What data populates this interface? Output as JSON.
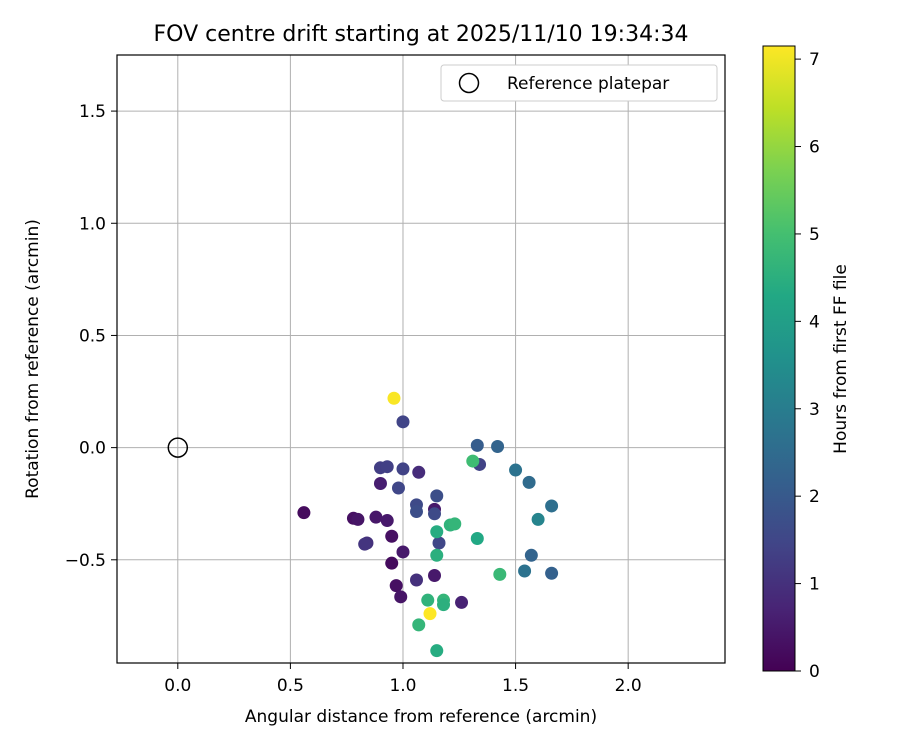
{
  "chart_data": {
    "type": "scatter",
    "title": "FOV centre drift starting at 2025/11/10 19:34:34",
    "xlabel": "Angular distance from reference (arcmin)",
    "ylabel": "Rotation from reference (arcmin)",
    "xlim": [
      -0.27,
      2.43
    ],
    "ylim": [
      -0.96,
      1.75
    ],
    "xticks": [
      0.0,
      0.5,
      1.0,
      1.5,
      2.0
    ],
    "xtick_labels": [
      "0.0",
      "0.5",
      "1.0",
      "1.5",
      "2.0"
    ],
    "yticks": [
      -0.5,
      0.0,
      0.5,
      1.0,
      1.5
    ],
    "ytick_labels": [
      "−0.5",
      "0.0",
      "0.5",
      "1.0",
      "1.5"
    ],
    "grid": true,
    "legend": {
      "placement": "upper-right",
      "label": "Reference platepar"
    },
    "reference_point": {
      "x": 0.0,
      "y": 0.0
    },
    "colorbar": {
      "label": "Hours from first FF file",
      "colormap": "viridis",
      "range": [
        0,
        7.15
      ],
      "ticks": [
        0,
        1,
        2,
        3,
        4,
        5,
        6,
        7
      ],
      "tick_labels": [
        "0",
        "1",
        "2",
        "3",
        "4",
        "5",
        "6",
        "7"
      ]
    },
    "points": [
      {
        "x": 0.56,
        "y": -0.29,
        "t": 0.2
      },
      {
        "x": 0.78,
        "y": -0.315,
        "t": 0.3
      },
      {
        "x": 0.8,
        "y": -0.32,
        "t": 0.4
      },
      {
        "x": 0.88,
        "y": -0.31,
        "t": 0.45
      },
      {
        "x": 0.93,
        "y": -0.325,
        "t": 0.5
      },
      {
        "x": 0.9,
        "y": -0.16,
        "t": 0.6
      },
      {
        "x": 0.95,
        "y": -0.395,
        "t": 0.3
      },
      {
        "x": 0.95,
        "y": -0.515,
        "t": 0.2
      },
      {
        "x": 1.0,
        "y": -0.465,
        "t": 0.5
      },
      {
        "x": 0.97,
        "y": -0.615,
        "t": 0.3
      },
      {
        "x": 0.99,
        "y": -0.665,
        "t": 0.4
      },
      {
        "x": 1.14,
        "y": -0.57,
        "t": 0.5
      },
      {
        "x": 1.14,
        "y": -0.275,
        "t": 0.5
      },
      {
        "x": 1.07,
        "y": -0.11,
        "t": 0.9
      },
      {
        "x": 1.06,
        "y": -0.59,
        "t": 1.0
      },
      {
        "x": 1.26,
        "y": -0.69,
        "t": 0.7
      },
      {
        "x": 0.84,
        "y": -0.425,
        "t": 1.0
      },
      {
        "x": 0.83,
        "y": -0.43,
        "t": 1.1
      },
      {
        "x": 0.9,
        "y": -0.09,
        "t": 1.3
      },
      {
        "x": 0.93,
        "y": -0.085,
        "t": 1.35
      },
      {
        "x": 1.0,
        "y": -0.095,
        "t": 1.4
      },
      {
        "x": 0.98,
        "y": -0.18,
        "t": 1.5
      },
      {
        "x": 1.0,
        "y": 0.115,
        "t": 1.45
      },
      {
        "x": 1.06,
        "y": -0.255,
        "t": 1.6
      },
      {
        "x": 1.06,
        "y": -0.285,
        "t": 1.7
      },
      {
        "x": 1.14,
        "y": -0.295,
        "t": 1.6
      },
      {
        "x": 1.15,
        "y": -0.215,
        "t": 1.7
      },
      {
        "x": 1.16,
        "y": -0.425,
        "t": 1.5
      },
      {
        "x": 1.34,
        "y": -0.075,
        "t": 1.4
      },
      {
        "x": 1.33,
        "y": 0.01,
        "t": 2.1
      },
      {
        "x": 1.42,
        "y": 0.005,
        "t": 2.3
      },
      {
        "x": 1.5,
        "y": -0.1,
        "t": 2.7
      },
      {
        "x": 1.56,
        "y": -0.155,
        "t": 2.5
      },
      {
        "x": 1.6,
        "y": -0.32,
        "t": 3.2
      },
      {
        "x": 1.66,
        "y": -0.26,
        "t": 2.6
      },
      {
        "x": 1.57,
        "y": -0.48,
        "t": 2.3
      },
      {
        "x": 1.54,
        "y": -0.55,
        "t": 2.7
      },
      {
        "x": 1.66,
        "y": -0.56,
        "t": 2.2
      },
      {
        "x": 1.15,
        "y": -0.375,
        "t": 4.4
      },
      {
        "x": 1.15,
        "y": -0.48,
        "t": 4.5
      },
      {
        "x": 1.21,
        "y": -0.345,
        "t": 4.6
      },
      {
        "x": 1.23,
        "y": -0.34,
        "t": 4.7
      },
      {
        "x": 1.33,
        "y": -0.405,
        "t": 4.3
      },
      {
        "x": 1.31,
        "y": -0.06,
        "t": 4.9
      },
      {
        "x": 1.43,
        "y": -0.565,
        "t": 4.8
      },
      {
        "x": 1.11,
        "y": -0.68,
        "t": 4.6
      },
      {
        "x": 1.18,
        "y": -0.68,
        "t": 4.7
      },
      {
        "x": 1.18,
        "y": -0.7,
        "t": 4.5
      },
      {
        "x": 1.07,
        "y": -0.79,
        "t": 4.7
      },
      {
        "x": 1.15,
        "y": -0.905,
        "t": 4.4
      },
      {
        "x": 0.96,
        "y": 0.22,
        "t": 7.1
      },
      {
        "x": 1.12,
        "y": -0.74,
        "t": 7.15
      }
    ]
  }
}
